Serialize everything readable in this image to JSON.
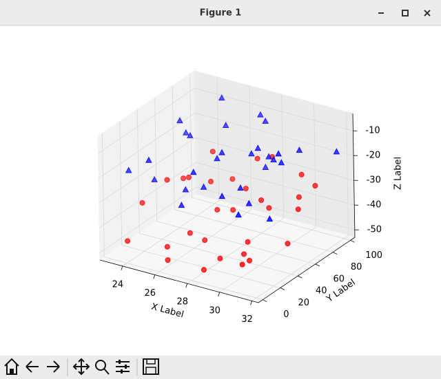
{
  "window": {
    "title": "Figure 1"
  },
  "chart_data": {
    "type": "scatter3d",
    "xlabel": "X Label",
    "ylabel": "Y Label",
    "zlabel": "Z Label",
    "xlim": [
      22.6,
      32.4
    ],
    "xticks": [
      24,
      26,
      28,
      30,
      32
    ],
    "ylim": [
      -5,
      105
    ],
    "yticks": [
      0,
      20,
      40,
      60,
      80,
      100
    ],
    "zlim": [
      -53,
      -3
    ],
    "zticks": [
      -50,
      -40,
      -30,
      -20,
      -10
    ],
    "grid": true,
    "series": [
      {
        "marker": "o",
        "color": "#ff0000",
        "x": [
          23.4,
          24.1,
          25.0,
          26.3,
          27.2,
          28.5,
          29.1,
          30.4,
          31.2,
          31.8,
          23.9,
          25.7,
          26.8,
          27.9,
          29.6,
          30.9,
          24.6,
          26.1,
          28.0,
          29.9,
          31.5,
          23.2,
          25.3,
          27.5,
          28.8,
          30.2,
          31.0,
          24.9,
          26.6,
          29.3
        ],
        "y": [
          12,
          45,
          78,
          30,
          91,
          5,
          60,
          22,
          83,
          40,
          67,
          15,
          52,
          95,
          35,
          70,
          88,
          8,
          48,
          25,
          58,
          33,
          97,
          72,
          18,
          86,
          3,
          55,
          41,
          65
        ],
        "z": [
          -48,
          -30,
          -37,
          -44,
          -27,
          -49,
          -33,
          -46,
          -29,
          -41,
          -35,
          -47,
          -39,
          -26,
          -43,
          -31,
          -28,
          -50,
          -36,
          -45,
          -32,
          -38,
          -40,
          -34,
          -47,
          -27,
          -42,
          -30,
          -49,
          -37
        ]
      },
      {
        "marker": "^",
        "color": "#0000ff",
        "x": [
          23.1,
          24.4,
          25.6,
          26.9,
          27.7,
          28.9,
          30.1,
          31.3,
          31.9,
          23.7,
          25.1,
          26.4,
          27.4,
          28.3,
          29.5,
          30.7,
          24.2,
          25.9,
          27.1,
          28.6,
          29.8,
          31.1,
          23.5,
          24.8,
          26.2,
          27.9,
          29.2,
          30.5,
          31.7,
          28.1
        ],
        "y": [
          20,
          55,
          85,
          10,
          42,
          73,
          28,
          64,
          95,
          38,
          90,
          60,
          15,
          80,
          50,
          5,
          70,
          33,
          97,
          25,
          62,
          44,
          78,
          12,
          48,
          88,
          35,
          58,
          22,
          68
        ],
        "z": [
          -22,
          -8,
          -15,
          -27,
          -12,
          -19,
          -25,
          -10,
          -17,
          -29,
          -6,
          -21,
          -14,
          -26,
          -9,
          -23,
          -18,
          -28,
          -11,
          -24,
          -16,
          -7,
          -20,
          -13,
          -30,
          -10,
          -22,
          -15,
          -27,
          -18
        ]
      }
    ]
  }
}
